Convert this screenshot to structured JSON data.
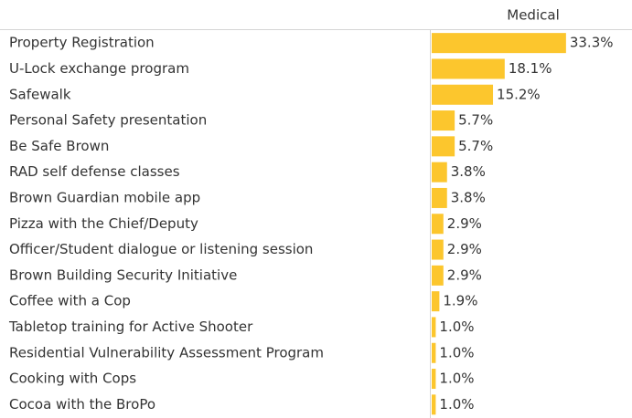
{
  "chart_data": {
    "type": "bar",
    "orientation": "horizontal",
    "column_header": "Medical",
    "categories": [
      "Property Registration",
      "U-Lock exchange program",
      "Safewalk",
      "Personal Safety presentation",
      "Be Safe Brown",
      "RAD self defense classes",
      "Brown Guardian mobile app",
      "Pizza with the Chief/Deputy",
      "Officer/Student dialogue or listening session",
      "Brown Building Security Initiative",
      "Coffee with a Cop",
      "Tabletop training for Active Shooter",
      "Residential Vulnerability Assessment Program",
      "Cooking with Cops",
      "Cocoa with the BroPo"
    ],
    "values": [
      33.3,
      18.1,
      15.2,
      5.7,
      5.7,
      3.8,
      3.8,
      2.9,
      2.9,
      2.9,
      1.9,
      1.0,
      1.0,
      1.0,
      1.0
    ],
    "value_labels": [
      "33.3%",
      "18.1%",
      "15.2%",
      "5.7%",
      "5.7%",
      "3.8%",
      "3.8%",
      "2.9%",
      "2.9%",
      "2.9%",
      "1.9%",
      "1.0%",
      "1.0%",
      "1.0%",
      "1.0%"
    ],
    "color": "#fcc62d"
  }
}
